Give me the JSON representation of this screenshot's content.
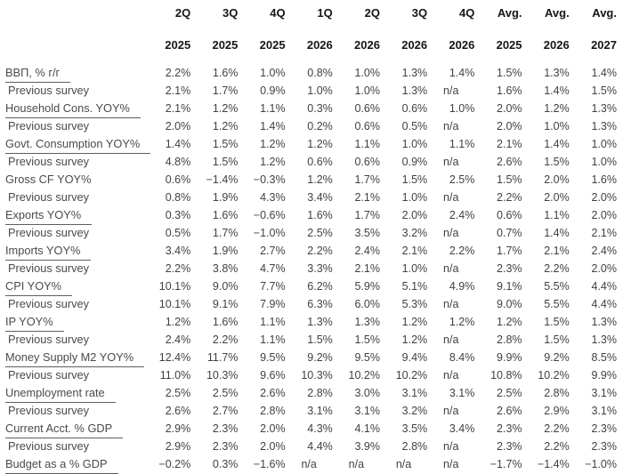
{
  "colors": {
    "background": "#ffffff",
    "header_text": "#161616",
    "label_text": "#4a4a4a",
    "value_text": "#463d45",
    "underline": "#5e5e5e"
  },
  "chart_data": {
    "type": "table",
    "title": "",
    "corner_label": "",
    "columns": [
      {
        "quarter": "2Q",
        "year": "2025"
      },
      {
        "quarter": "3Q",
        "year": "2025"
      },
      {
        "quarter": "4Q",
        "year": "2025"
      },
      {
        "quarter": "1Q",
        "year": "2026"
      },
      {
        "quarter": "2Q",
        "year": "2026"
      },
      {
        "quarter": "3Q",
        "year": "2026"
      },
      {
        "quarter": "4Q",
        "year": "2026"
      },
      {
        "quarter": "Avg.",
        "year": "2025"
      },
      {
        "quarter": "Avg.",
        "year": "2026"
      },
      {
        "quarter": "Avg.",
        "year": "2027"
      }
    ],
    "rows": [
      {
        "label": "ВВП, % г/г",
        "underline": true,
        "indent": false,
        "values": [
          "2.2%",
          "1.6%",
          "1.0%",
          "0.8%",
          "1.0%",
          "1.3%",
          "1.4%",
          "1.5%",
          "1.3%",
          "1.4%"
        ]
      },
      {
        "label": "Previous survey",
        "underline": false,
        "indent": true,
        "values": [
          "2.1%",
          "1.7%",
          "0.9%",
          "1.0%",
          "1.0%",
          "1.3%",
          "n/a",
          "1.6%",
          "1.4%",
          "1.5%"
        ]
      },
      {
        "label": "Household Cons. YOY%",
        "underline": true,
        "indent": false,
        "values": [
          "2.1%",
          "1.2%",
          "1.1%",
          "0.3%",
          "0.6%",
          "0.6%",
          "1.0%",
          "2.0%",
          "1.2%",
          "1.3%"
        ]
      },
      {
        "label": "Previous survey",
        "underline": false,
        "indent": true,
        "values": [
          "2.0%",
          "1.2%",
          "1.4%",
          "0.2%",
          "0.6%",
          "0.5%",
          "n/a",
          "2.0%",
          "1.0%",
          "1.3%"
        ]
      },
      {
        "label": "Govt. Consumption YOY%",
        "underline": true,
        "indent": false,
        "values": [
          "1.4%",
          "1.5%",
          "1.2%",
          "1.2%",
          "1.1%",
          "1.0%",
          "1.1%",
          "2.1%",
          "1.4%",
          "1.0%"
        ]
      },
      {
        "label": "Previous survey",
        "underline": false,
        "indent": true,
        "values": [
          "4.8%",
          "1.5%",
          "1.2%",
          "0.6%",
          "0.6%",
          "0.9%",
          "n/a",
          "2.6%",
          "1.5%",
          "1.0%"
        ]
      },
      {
        "label": "Gross CF YOY%",
        "underline": false,
        "indent": false,
        "values": [
          "0.6%",
          "−1.4%",
          "−0.3%",
          "1.2%",
          "1.7%",
          "1.5%",
          "2.5%",
          "1.5%",
          "2.0%",
          "1.6%"
        ]
      },
      {
        "label": "Previous survey",
        "underline": false,
        "indent": true,
        "values": [
          "0.8%",
          "1.9%",
          "4.3%",
          "3.4%",
          "2.1%",
          "1.0%",
          "n/a",
          "2.2%",
          "2.0%",
          "2.0%"
        ]
      },
      {
        "label": "Exports YOY%",
        "underline": true,
        "indent": false,
        "values": [
          "0.3%",
          "1.6%",
          "−0.6%",
          "1.6%",
          "1.7%",
          "2.0%",
          "2.4%",
          "0.6%",
          "1.1%",
          "2.0%"
        ]
      },
      {
        "label": "Previous survey",
        "underline": false,
        "indent": true,
        "values": [
          "0.5%",
          "1.7%",
          "−1.0%",
          "2.5%",
          "3.5%",
          "3.2%",
          "n/a",
          "0.7%",
          "1.4%",
          "2.1%"
        ]
      },
      {
        "label": "Imports YOY%",
        "underline": true,
        "indent": false,
        "values": [
          "3.4%",
          "1.9%",
          "2.7%",
          "2.2%",
          "2.4%",
          "2.1%",
          "2.2%",
          "1.7%",
          "2.1%",
          "2.4%"
        ]
      },
      {
        "label": "Previous survey",
        "underline": false,
        "indent": true,
        "values": [
          "2.2%",
          "3.8%",
          "4.7%",
          "3.3%",
          "2.1%",
          "1.0%",
          "n/a",
          "2.3%",
          "2.2%",
          "2.0%"
        ]
      },
      {
        "label": "CPI YOY%",
        "underline": true,
        "indent": false,
        "values": [
          "10.1%",
          "9.0%",
          "7.7%",
          "6.2%",
          "5.9%",
          "5.1%",
          "4.9%",
          "9.1%",
          "5.5%",
          "4.4%"
        ]
      },
      {
        "label": "Previous survey",
        "underline": false,
        "indent": true,
        "values": [
          "10.1%",
          "9.1%",
          "7.9%",
          "6.3%",
          "6.0%",
          "5.3%",
          "n/a",
          "9.0%",
          "5.5%",
          "4.4%"
        ]
      },
      {
        "label": "IP YOY%",
        "underline": true,
        "indent": false,
        "values": [
          "1.2%",
          "1.6%",
          "1.1%",
          "1.3%",
          "1.3%",
          "1.2%",
          "1.2%",
          "1.2%",
          "1.5%",
          "1.3%"
        ]
      },
      {
        "label": "Previous survey",
        "underline": false,
        "indent": true,
        "values": [
          "2.4%",
          "2.2%",
          "1.1%",
          "1.5%",
          "1.5%",
          "1.2%",
          "n/a",
          "2.8%",
          "1.5%",
          "1.3%"
        ]
      },
      {
        "label": "Money Supply M2 YOY%",
        "underline": true,
        "indent": false,
        "values": [
          "12.4%",
          "11.7%",
          "9.5%",
          "9.2%",
          "9.5%",
          "9.4%",
          "8.4%",
          "9.9%",
          "9.2%",
          "8.5%"
        ]
      },
      {
        "label": "Previous survey",
        "underline": false,
        "indent": true,
        "values": [
          "11.0%",
          "10.3%",
          "9.6%",
          "10.3%",
          "10.2%",
          "10.2%",
          "n/a",
          "10.8%",
          "10.2%",
          "9.9%"
        ]
      },
      {
        "label": "Unemployment rate",
        "underline": true,
        "indent": false,
        "values": [
          "2.5%",
          "2.5%",
          "2.6%",
          "2.8%",
          "3.0%",
          "3.1%",
          "3.1%",
          "2.5%",
          "2.8%",
          "3.1%"
        ]
      },
      {
        "label": "Previous survey",
        "underline": false,
        "indent": true,
        "values": [
          "2.6%",
          "2.7%",
          "2.8%",
          "3.1%",
          "3.1%",
          "3.2%",
          "n/a",
          "2.6%",
          "2.9%",
          "3.1%"
        ]
      },
      {
        "label": "Current Acct. % GDP",
        "underline": true,
        "indent": false,
        "values": [
          "2.9%",
          "2.3%",
          "2.0%",
          "4.3%",
          "4.1%",
          "3.5%",
          "3.4%",
          "2.3%",
          "2.2%",
          "2.3%"
        ]
      },
      {
        "label": "Previous survey",
        "underline": false,
        "indent": true,
        "values": [
          "2.9%",
          "2.3%",
          "2.0%",
          "4.4%",
          "3.9%",
          "2.8%",
          "n/a",
          "2.3%",
          "2.2%",
          "2.3%"
        ]
      },
      {
        "label": "Budget as a % GDP",
        "underline": true,
        "indent": false,
        "values": [
          "−0.2%",
          "0.3%",
          "−1.6%",
          "n/a",
          "n/a",
          "n/a",
          "n/a",
          "−1.7%",
          "−1.4%",
          "−1.0%"
        ]
      }
    ]
  }
}
